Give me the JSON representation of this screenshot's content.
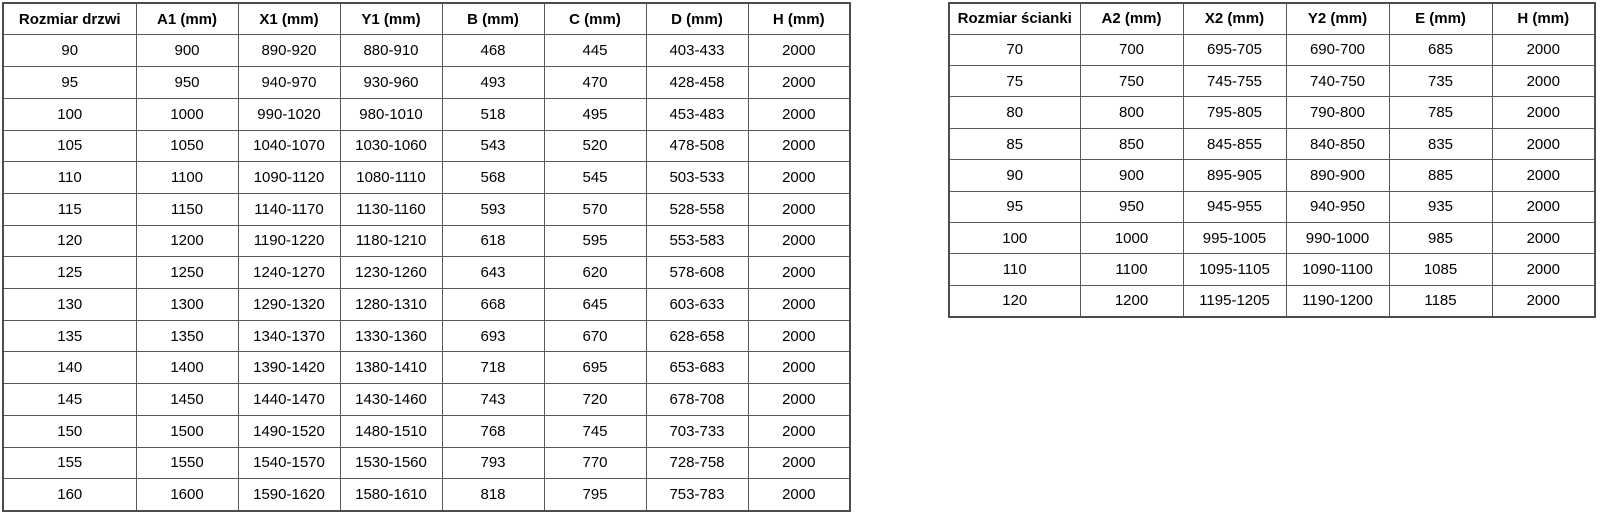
{
  "page": {
    "background_color": "#ffffff",
    "text_color": "#000000",
    "border_color": "#595959"
  },
  "door_table": {
    "headers": [
      "Rozmiar drzwi",
      "A1 (mm)",
      "X1 (mm)",
      "Y1 (mm)",
      "B (mm)",
      "C (mm)",
      "D (mm)",
      "H (mm)"
    ],
    "rows": [
      [
        "90",
        "900",
        "890-920",
        "880-910",
        "468",
        "445",
        "403-433",
        "2000"
      ],
      [
        "95",
        "950",
        "940-970",
        "930-960",
        "493",
        "470",
        "428-458",
        "2000"
      ],
      [
        "100",
        "1000",
        "990-1020",
        "980-1010",
        "518",
        "495",
        "453-483",
        "2000"
      ],
      [
        "105",
        "1050",
        "1040-1070",
        "1030-1060",
        "543",
        "520",
        "478-508",
        "2000"
      ],
      [
        "110",
        "1100",
        "1090-1120",
        "1080-1110",
        "568",
        "545",
        "503-533",
        "2000"
      ],
      [
        "115",
        "1150",
        "1140-1170",
        "1130-1160",
        "593",
        "570",
        "528-558",
        "2000"
      ],
      [
        "120",
        "1200",
        "1190-1220",
        "1180-1210",
        "618",
        "595",
        "553-583",
        "2000"
      ],
      [
        "125",
        "1250",
        "1240-1270",
        "1230-1260",
        "643",
        "620",
        "578-608",
        "2000"
      ],
      [
        "130",
        "1300",
        "1290-1320",
        "1280-1310",
        "668",
        "645",
        "603-633",
        "2000"
      ],
      [
        "135",
        "1350",
        "1340-1370",
        "1330-1360",
        "693",
        "670",
        "628-658",
        "2000"
      ],
      [
        "140",
        "1400",
        "1390-1420",
        "1380-1410",
        "718",
        "695",
        "653-683",
        "2000"
      ],
      [
        "145",
        "1450",
        "1440-1470",
        "1430-1460",
        "743",
        "720",
        "678-708",
        "2000"
      ],
      [
        "150",
        "1500",
        "1490-1520",
        "1480-1510",
        "768",
        "745",
        "703-733",
        "2000"
      ],
      [
        "155",
        "1550",
        "1540-1570",
        "1530-1560",
        "793",
        "770",
        "728-758",
        "2000"
      ],
      [
        "160",
        "1600",
        "1590-1620",
        "1580-1610",
        "818",
        "795",
        "753-783",
        "2000"
      ]
    ]
  },
  "wall_table": {
    "headers": [
      "Rozmiar ścianki",
      "A2 (mm)",
      "X2 (mm)",
      "Y2 (mm)",
      "E (mm)",
      "H (mm)"
    ],
    "rows": [
      [
        "70",
        "700",
        "695-705",
        "690-700",
        "685",
        "2000"
      ],
      [
        "75",
        "750",
        "745-755",
        "740-750",
        "735",
        "2000"
      ],
      [
        "80",
        "800",
        "795-805",
        "790-800",
        "785",
        "2000"
      ],
      [
        "85",
        "850",
        "845-855",
        "840-850",
        "835",
        "2000"
      ],
      [
        "90",
        "900",
        "895-905",
        "890-900",
        "885",
        "2000"
      ],
      [
        "95",
        "950",
        "945-955",
        "940-950",
        "935",
        "2000"
      ],
      [
        "100",
        "1000",
        "995-1005",
        "990-1000",
        "985",
        "2000"
      ],
      [
        "110",
        "1100",
        "1095-1105",
        "1090-1100",
        "1085",
        "2000"
      ],
      [
        "120",
        "1200",
        "1195-1205",
        "1190-1200",
        "1185",
        "2000"
      ]
    ]
  }
}
